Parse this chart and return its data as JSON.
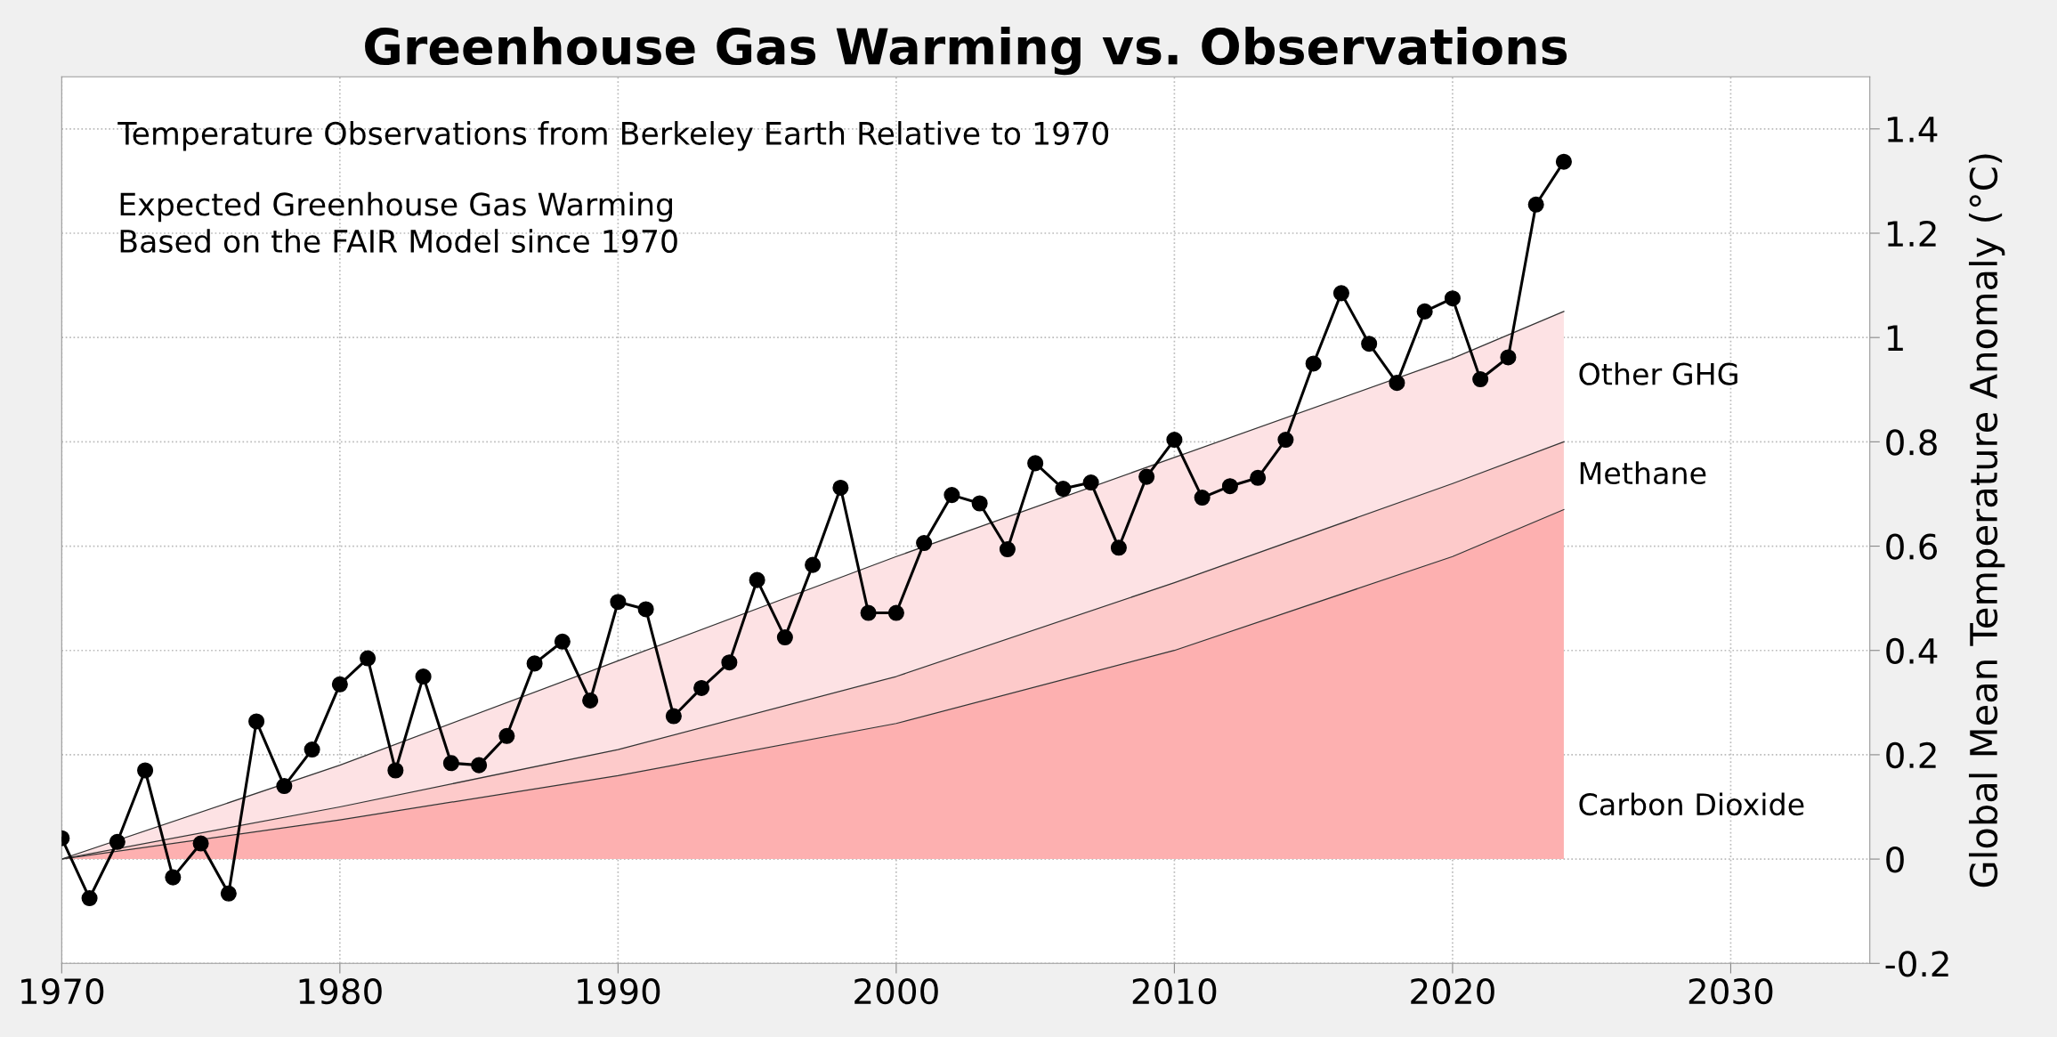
{
  "chart_data": {
    "type": "area",
    "stacked": true,
    "title": "Greenhouse Gas Warming vs. Observations",
    "ylabel": "Global Mean Temperature Anomaly (°C)",
    "annotations": [
      "Temperature Observations from Berkeley Earth Relative to 1970",
      "Expected Greenhouse Gas Warming\nBased on the FAIR Model since 1970"
    ],
    "xlim": [
      1970,
      2035
    ],
    "xticks": [
      1970,
      1980,
      1990,
      2000,
      2010,
      2020,
      2030
    ],
    "ylim": [
      -0.2,
      1.5
    ],
    "yticks": [
      -0.2,
      0,
      0.2,
      0.4,
      0.6,
      0.8,
      1,
      1.2,
      1.4
    ],
    "grid": true,
    "series": [
      {
        "name": "Carbon Dioxide",
        "color": "#fdb0b0",
        "x": [
          1970,
          1980,
          1990,
          2000,
          2010,
          2020,
          2024
        ],
        "values": [
          0,
          0.075,
          0.16,
          0.26,
          0.4,
          0.58,
          0.67
        ]
      },
      {
        "name": "Methane",
        "color": "#fdcaca",
        "x": [
          1970,
          1980,
          1990,
          2000,
          2010,
          2020,
          2024
        ],
        "values": [
          0,
          0.025,
          0.05,
          0.09,
          0.13,
          0.14,
          0.13
        ]
      },
      {
        "name": "Other GHG",
        "color": "#fde2e4",
        "x": [
          1970,
          1980,
          1990,
          2000,
          2010,
          2020,
          2024
        ],
        "values": [
          0,
          0.08,
          0.17,
          0.23,
          0.24,
          0.24,
          0.25
        ]
      },
      {
        "type": "line",
        "color": "#000000",
        "marker": "circle",
        "line_style": "solid",
        "x": [
          1970,
          1971,
          1972,
          1973,
          1974,
          1975,
          1976,
          1977,
          1978,
          1979,
          1980,
          1981,
          1982,
          1983,
          1984,
          1985,
          1986,
          1987,
          1988,
          1989,
          1990,
          1991,
          1992,
          1993,
          1994,
          1995,
          1996,
          1997,
          1998,
          1999,
          2000,
          2001,
          2002,
          2003,
          2004,
          2005,
          2006,
          2007,
          2008,
          2009,
          2010,
          2011,
          2012,
          2013,
          2014,
          2015,
          2016,
          2017,
          2018,
          2019,
          2020,
          2021,
          2022,
          2023,
          2024
        ],
        "values": [
          0.04,
          -0.075,
          0.033,
          0.17,
          -0.035,
          0.03,
          -0.066,
          0.264,
          0.14,
          0.21,
          0.335,
          0.385,
          0.17,
          0.35,
          0.184,
          0.18,
          0.236,
          0.375,
          0.417,
          0.304,
          0.493,
          0.479,
          0.274,
          0.328,
          0.377,
          0.535,
          0.425,
          0.564,
          0.712,
          0.472,
          0.472,
          0.606,
          0.698,
          0.682,
          0.594,
          0.759,
          0.71,
          0.722,
          0.597,
          0.733,
          0.804,
          0.693,
          0.715,
          0.731,
          0.804,
          0.95,
          1.085,
          0.988,
          0.913,
          1.05,
          1.075,
          0.92,
          0.962,
          1.255,
          1.337
        ]
      }
    ]
  }
}
